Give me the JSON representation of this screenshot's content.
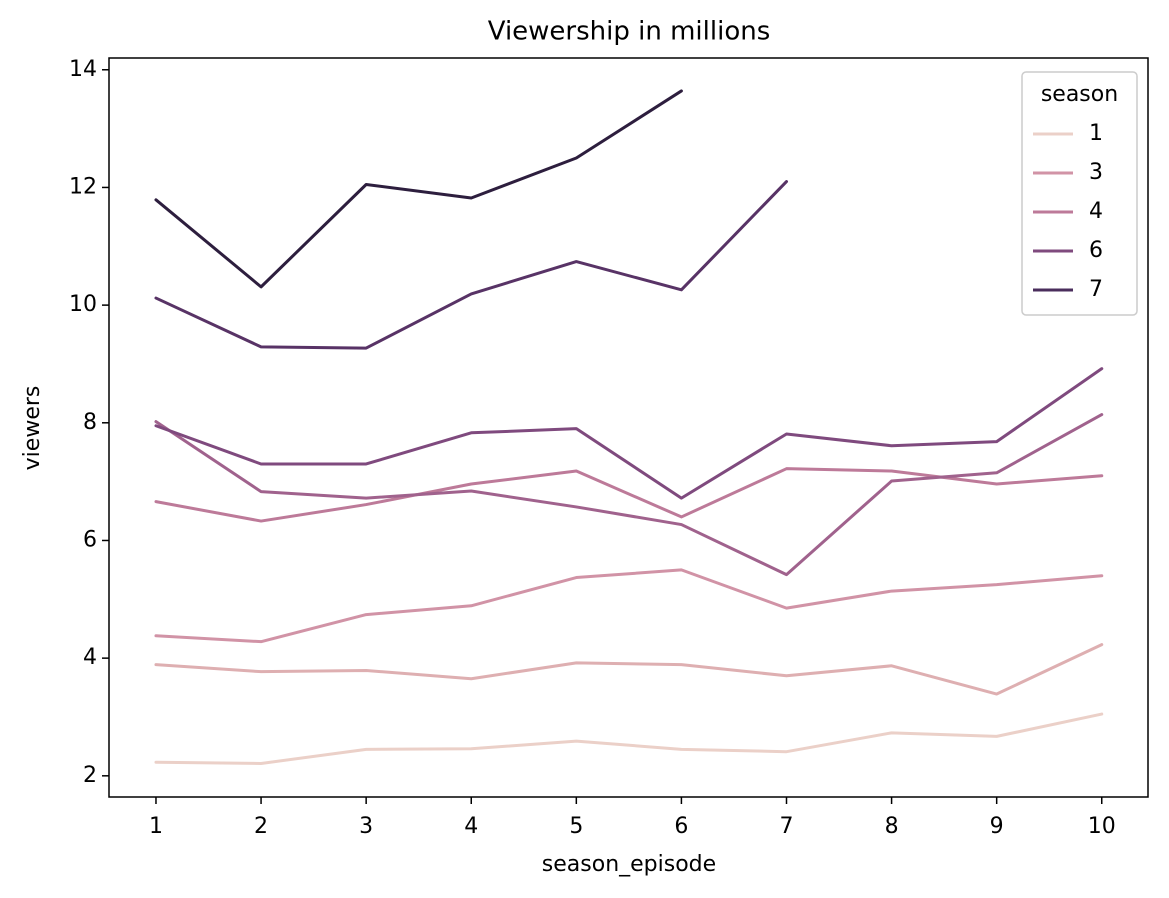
{
  "chart_data": {
    "type": "line",
    "title": "Viewership in millions",
    "x_label": "season_episode",
    "y_label": "viewers",
    "x": [
      1,
      2,
      3,
      4,
      5,
      6,
      7,
      8,
      9,
      10
    ],
    "series": [
      {
        "color": "#ebd0c8",
        "values": [
          2.23,
          2.21,
          2.45,
          2.46,
          2.59,
          2.45,
          2.41,
          2.73,
          2.67,
          3.05
        ]
      },
      {
        "color": "#deafb1",
        "values": [
          3.89,
          3.77,
          3.79,
          3.65,
          3.92,
          3.89,
          3.7,
          3.87,
          3.39,
          4.23
        ]
      },
      {
        "color": "#d193a6",
        "values": [
          4.38,
          4.28,
          4.74,
          4.89,
          5.37,
          5.5,
          4.85,
          5.14,
          5.25,
          5.4
        ]
      },
      {
        "color": "#bd7a99",
        "values": [
          6.66,
          6.33,
          6.61,
          6.96,
          7.18,
          6.4,
          7.22,
          7.18,
          6.96,
          7.1
        ]
      },
      {
        "color": "#a0628d",
        "values": [
          8.02,
          6.83,
          6.72,
          6.84,
          6.57,
          6.27,
          5.42,
          7.01,
          7.15,
          8.14
        ]
      },
      {
        "color": "#7f4a7e",
        "values": [
          7.95,
          7.3,
          7.3,
          7.83,
          7.9,
          6.72,
          7.81,
          7.61,
          7.68,
          8.92
        ]
      },
      {
        "color": "#583366",
        "values": [
          10.12,
          9.29,
          9.27,
          10.19,
          10.74,
          10.26,
          12.1,
          null,
          null,
          null
        ]
      },
      {
        "color": "#2d1e3e",
        "values": [
          11.79,
          10.31,
          12.05,
          11.82,
          12.5,
          13.64,
          null,
          null,
          null,
          null
        ]
      }
    ],
    "legend_title": "season",
    "legend": [
      {
        "label": "1",
        "color": "#ebd0c8"
      },
      {
        "label": "3",
        "color": "#d193a6"
      },
      {
        "label": "4",
        "color": "#bd7a99"
      },
      {
        "label": "6",
        "color": "#7f4a7e"
      },
      {
        "label": "7",
        "color": "#4a2d5c"
      }
    ],
    "legend_position": "upper right",
    "xlim": [
      0.553,
      10.44
    ],
    "ylim": [
      1.64,
      14.2
    ],
    "xticks": [
      1,
      2,
      3,
      4,
      5,
      6,
      7,
      8,
      9,
      10
    ],
    "yticks": [
      2,
      4,
      6,
      8,
      10,
      12,
      14
    ]
  }
}
